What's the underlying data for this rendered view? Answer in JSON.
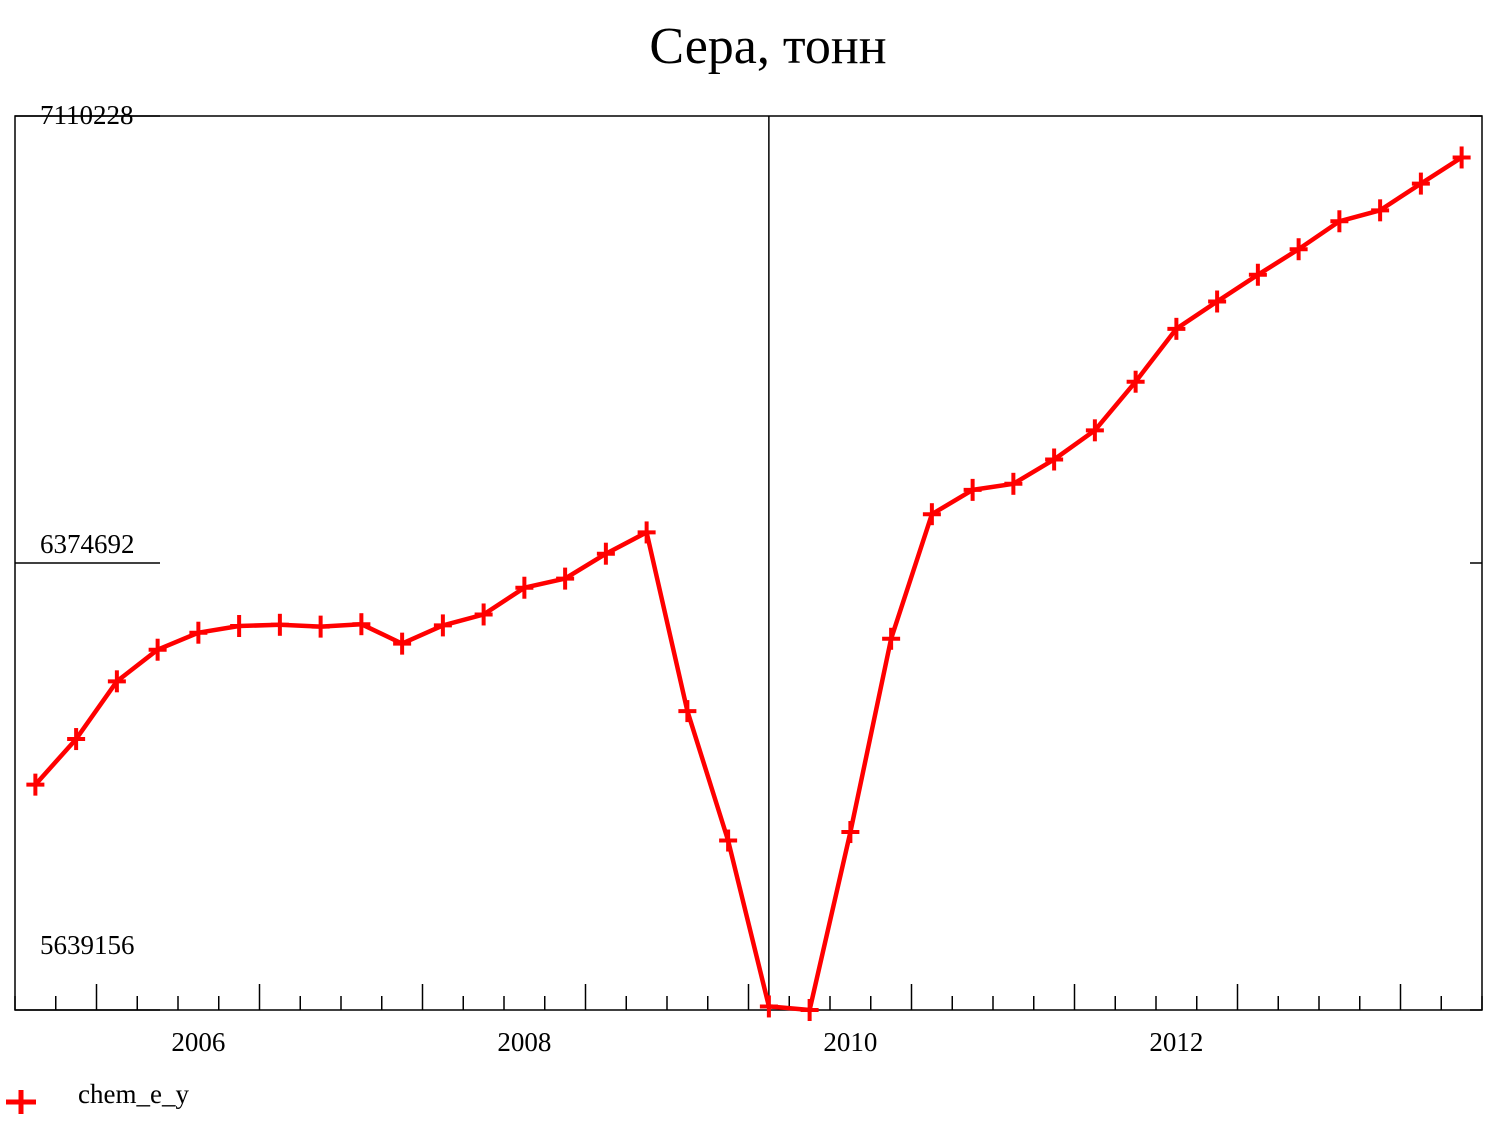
{
  "chart_data": {
    "type": "line",
    "title": "Сера, тонн",
    "xlabel": "",
    "ylabel": "",
    "x_tick_labels": [
      "2006",
      "2008",
      "2010",
      "2012"
    ],
    "y_tick_labels": [
      "7110228",
      "6374692",
      "5639156"
    ],
    "ylim": [
      5639156,
      7110228
    ],
    "xlim": [
      2004.875,
      2013.875
    ],
    "grid": false,
    "reference_line_x": 2009.5,
    "legend_position": "bottom-left",
    "colors": {
      "series": "#ff0000",
      "axes": "#000000",
      "background": "#ffffff"
    },
    "series": [
      {
        "name": "chem_e_y",
        "marker": "plus",
        "x": [
          2005.0,
          2005.25,
          2005.5,
          2005.75,
          2006.0,
          2006.25,
          2006.5,
          2006.75,
          2007.0,
          2007.25,
          2007.5,
          2007.75,
          2008.0,
          2008.25,
          2008.5,
          2008.75,
          2009.0,
          2009.25,
          2009.5,
          2009.75,
          2010.0,
          2010.25,
          2010.5,
          2010.75,
          2011.0,
          2011.25,
          2011.5,
          2011.75,
          2012.0,
          2012.25,
          2012.5,
          2012.75,
          2013.0,
          2013.25,
          2013.5,
          2013.75
        ],
        "values": [
          6010000,
          6085000,
          6180000,
          6232000,
          6260000,
          6271000,
          6273000,
          6270000,
          6274000,
          6242000,
          6272000,
          6290000,
          6334000,
          6349000,
          6390000,
          6425000,
          6131000,
          5918000,
          5645000,
          5639156,
          5932000,
          6250000,
          6455000,
          6495000,
          6505000,
          6545000,
          6593000,
          6673000,
          6760000,
          6805000,
          6849000,
          6891000,
          6937000,
          6955000,
          6999000,
          7042000
        ]
      }
    ]
  }
}
